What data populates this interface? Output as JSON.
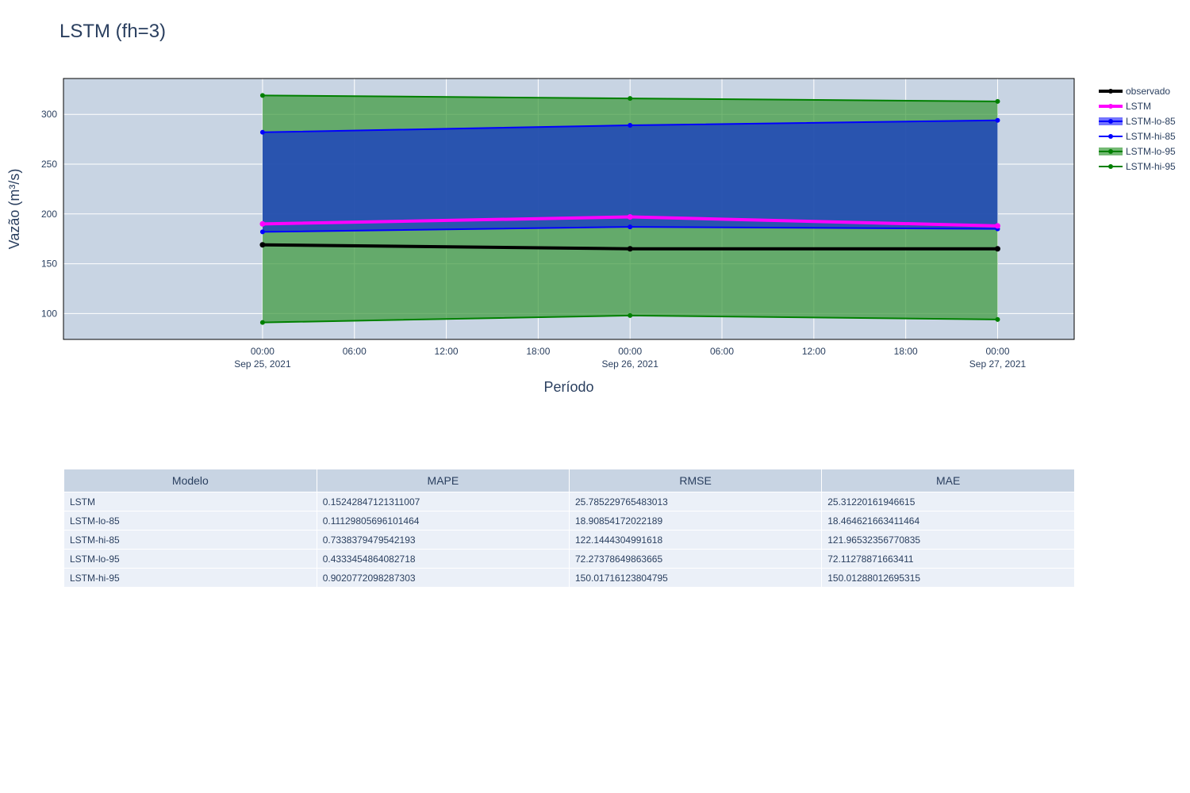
{
  "title": "LSTM (fh=3)",
  "chart_data": {
    "type": "line",
    "xlabel": "Período",
    "ylabel": "Vazão (m³/s)",
    "x": [
      "2021-09-25 00:00",
      "2021-09-26 00:00",
      "2021-09-27 00:00"
    ],
    "xlim": [
      "2021-09-24 11:00",
      "2021-09-27 05:00"
    ],
    "ylim": [
      74,
      336
    ],
    "x_ticks": [
      {
        "value": "2021-09-25 00:00",
        "line1": "00:00",
        "line2": "Sep 25, 2021"
      },
      {
        "value": "2021-09-25 06:00",
        "line1": "06:00",
        "line2": ""
      },
      {
        "value": "2021-09-25 12:00",
        "line1": "12:00",
        "line2": ""
      },
      {
        "value": "2021-09-25 18:00",
        "line1": "18:00",
        "line2": ""
      },
      {
        "value": "2021-09-26 00:00",
        "line1": "00:00",
        "line2": "Sep 26, 2021"
      },
      {
        "value": "2021-09-26 06:00",
        "line1": "06:00",
        "line2": ""
      },
      {
        "value": "2021-09-26 12:00",
        "line1": "12:00",
        "line2": ""
      },
      {
        "value": "2021-09-26 18:00",
        "line1": "18:00",
        "line2": ""
      },
      {
        "value": "2021-09-27 00:00",
        "line1": "00:00",
        "line2": "Sep 27, 2021"
      }
    ],
    "y_ticks": [
      100,
      150,
      200,
      250,
      300
    ],
    "grid": true,
    "legend_position": "right",
    "plot_background": "#c8d4e3",
    "bands": [
      {
        "lower": "LSTM-lo-95",
        "upper": "LSTM-hi-95",
        "color": "#3d9a3d",
        "opacity": 0.72
      },
      {
        "lower": "LSTM-lo-85",
        "upper": "LSTM-hi-85",
        "color": "#1a3fc0",
        "opacity": 0.8
      }
    ],
    "series": [
      {
        "name": "observado",
        "values": [
          169,
          165,
          165
        ],
        "color": "#000000",
        "legend_fill": false
      },
      {
        "name": "LSTM",
        "values": [
          190,
          197,
          188
        ],
        "color": "#ff00ff",
        "legend_fill": false
      },
      {
        "name": "LSTM-lo-85",
        "values": [
          182,
          187,
          185
        ],
        "color": "#0000ff",
        "legend_fill": true
      },
      {
        "name": "LSTM-hi-85",
        "values": [
          282,
          289,
          294
        ],
        "color": "#0000ff",
        "legend_fill": false
      },
      {
        "name": "LSTM-lo-95",
        "values": [
          91,
          98,
          94
        ],
        "color": "#008000",
        "legend_fill": true
      },
      {
        "name": "LSTM-hi-95",
        "values": [
          319,
          316,
          313
        ],
        "color": "#008000",
        "legend_fill": false
      }
    ],
    "draw_order": [
      "LSTM-lo-95",
      "LSTM-hi-95",
      "LSTM-lo-85",
      "LSTM-hi-85",
      "LSTM",
      "observado"
    ]
  },
  "table": {
    "headers": [
      "Modelo",
      "MAPE",
      "RMSE",
      "MAE"
    ],
    "rows": [
      [
        "LSTM",
        "0.15242847121311007",
        "25.785229765483013",
        "25.31220161946615"
      ],
      [
        "LSTM-lo-85",
        "0.11129805696101464",
        "18.90854172022189",
        "18.464621663411464"
      ],
      [
        "LSTM-hi-85",
        "0.7338379479542193",
        "122.1444304991618",
        "121.96532356770835"
      ],
      [
        "LSTM-lo-95",
        "0.4333454864082718",
        "72.27378649863665",
        "72.11278871663411"
      ],
      [
        "LSTM-hi-95",
        "0.9020772098287303",
        "150.01716123804795",
        "150.01288012695315"
      ]
    ]
  }
}
